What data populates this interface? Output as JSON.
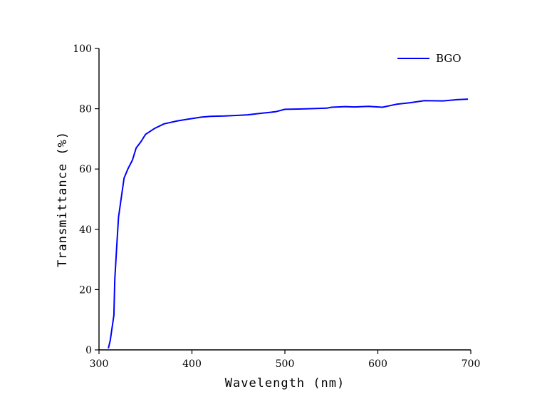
{
  "chart_data": {
    "type": "line",
    "xlabel": "Wavelength (nm)",
    "ylabel": "Transmittance (%)",
    "xlim": [
      300,
      700
    ],
    "ylim": [
      0,
      100
    ],
    "x_ticks": [
      300,
      400,
      500,
      600,
      700
    ],
    "y_ticks": [
      0,
      20,
      40,
      60,
      80,
      100
    ],
    "grid": false,
    "legend_position": "top-right",
    "series": [
      {
        "name": "BGO",
        "color": "#0000ff",
        "x": [
          310,
          312,
          316,
          317,
          319,
          321,
          324,
          327,
          331,
          336,
          340,
          345,
          350,
          360,
          370,
          385,
          395,
          410,
          420,
          435,
          450,
          460,
          475,
          490,
          500,
          515,
          525,
          545,
          550,
          565,
          575,
          590,
          605,
          620,
          635,
          650,
          670,
          685,
          697
        ],
        "y": [
          0.5,
          3,
          11.5,
          23.5,
          34,
          44,
          50.5,
          57,
          60,
          63,
          67,
          69,
          71.5,
          73.5,
          75,
          76,
          76.5,
          77.2,
          77.5,
          77.6,
          77.8,
          78,
          78.5,
          79,
          79.8,
          79.9,
          80,
          80.2,
          80.5,
          80.7,
          80.6,
          80.8,
          80.5,
          81.5,
          82,
          82.7,
          82.6,
          83,
          83.2
        ]
      }
    ]
  }
}
